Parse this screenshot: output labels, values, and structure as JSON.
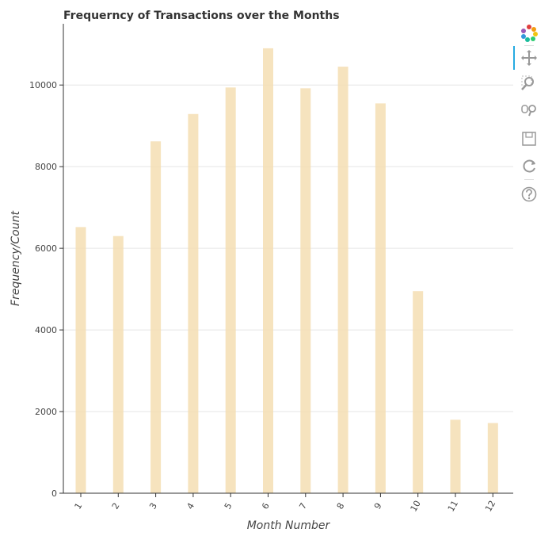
{
  "chart_data": {
    "type": "bar",
    "title": "Frequerncy of Transactions over the Months",
    "xlabel": "Month Number",
    "ylabel": "Frequency/Count",
    "categories": [
      "1",
      "2",
      "3",
      "4",
      "5",
      "6",
      "7",
      "8",
      "9",
      "10",
      "11",
      "12"
    ],
    "values": [
      6520,
      6300,
      8620,
      9290,
      9940,
      10900,
      9920,
      10450,
      9550,
      4950,
      1800,
      1720
    ],
    "yticks": [
      0,
      2000,
      4000,
      6000,
      8000,
      10000
    ],
    "ytick_labels": [
      "0",
      "2000",
      "4000",
      "6000",
      "8000",
      "10000"
    ],
    "ylim": [
      0,
      11500
    ],
    "grid": true,
    "bar_color": "#f5deb3"
  },
  "toolbar": {
    "tools": [
      {
        "name": "bokeh-logo-icon"
      },
      {
        "name": "pan-tool-icon"
      },
      {
        "name": "box-zoom-tool-icon"
      },
      {
        "name": "wheel-zoom-tool-icon"
      },
      {
        "name": "save-tool-icon"
      },
      {
        "name": "reset-tool-icon"
      },
      {
        "name": "help-tool-icon"
      }
    ],
    "active_color": "#26aae1"
  }
}
